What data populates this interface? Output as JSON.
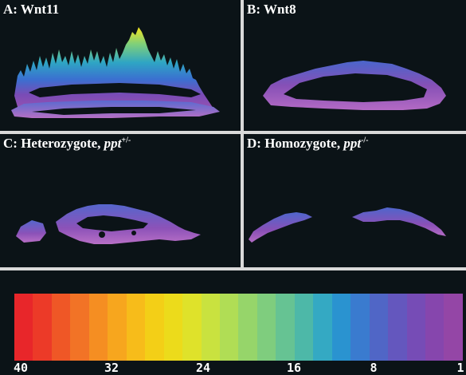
{
  "panels": {
    "a": {
      "letter": "A: ",
      "name": "Wnt11"
    },
    "b": {
      "letter": "B: ",
      "name": "Wnt8"
    },
    "c": {
      "letter": "C: ",
      "name": "Heterozygote, ",
      "gene": "ppt",
      "sup": "+/-"
    },
    "d": {
      "letter": "D: ",
      "name": "Homozygote, ",
      "gene": "ppt",
      "sup": "-/-"
    }
  },
  "scale": {
    "ticks": [
      "40",
      "32",
      "24",
      "16",
      "8",
      "1"
    ],
    "colors": [
      "#e8262a",
      "#ec3a28",
      "#ef5726",
      "#f27326",
      "#f58e22",
      "#f7a61e",
      "#f7bc1a",
      "#f3cf17",
      "#ecdb1b",
      "#dfe22a",
      "#c9e23f",
      "#b0dd55",
      "#96d56a",
      "#7fcd7e",
      "#66c393",
      "#4db8a8",
      "#34a9c3",
      "#2a93d0",
      "#3a7bcf",
      "#5066c6",
      "#6457be",
      "#764cb6",
      "#8646ad",
      "#9446a6"
    ]
  }
}
